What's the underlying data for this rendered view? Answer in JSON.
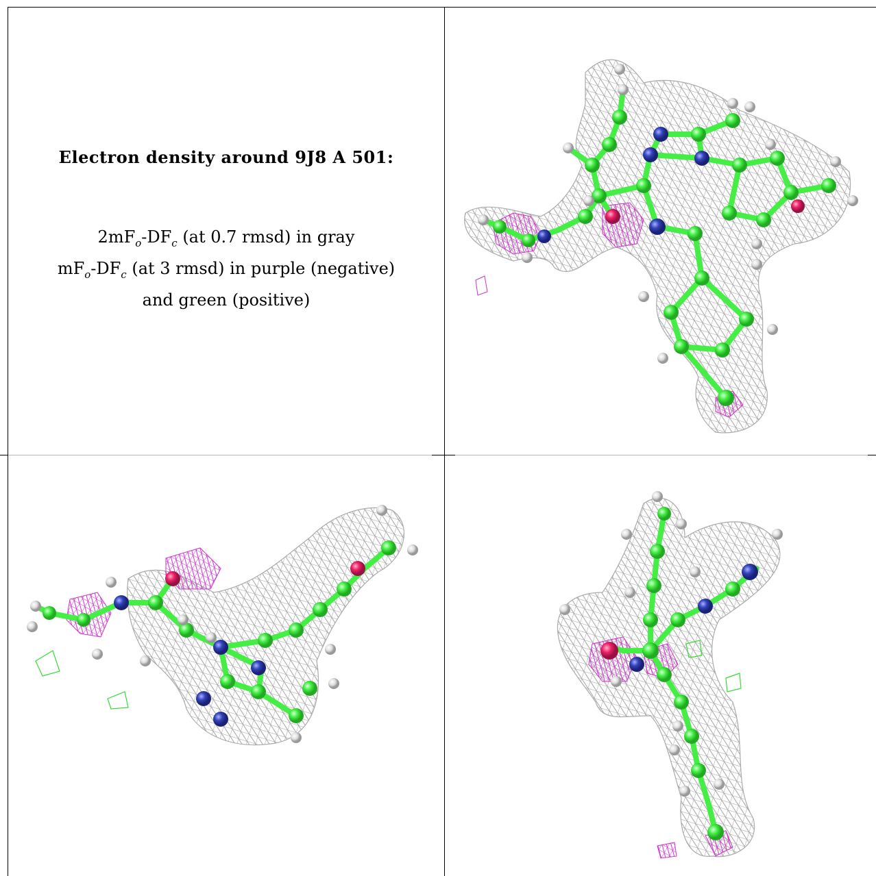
{
  "caption": {
    "title": "Electron density around 9J8 A 501:",
    "legend_lines": [
      {
        "pre": "2mF",
        "sub1": "o",
        "mid": "-DF",
        "sub2": "c",
        "post": " (at 0.7 rmsd) in gray"
      },
      {
        "pre": "mF",
        "sub1": "o",
        "mid": "-DF",
        "sub2": "c",
        "post": " (at 3 rmsd) in purple (negative)"
      },
      {
        "pre": "",
        "sub1": "",
        "mid": "",
        "sub2": "",
        "post": "and green (positive)"
      }
    ]
  },
  "colors": {
    "carbon": "#44ee44",
    "nitrogen": "#3344bb",
    "oxygen": "#ee2266",
    "hydrogen": "#dddddd",
    "mesh_2fofc": "#999999",
    "mesh_negative": "#cc33cc",
    "mesh_positive": "#33dd33"
  },
  "panels": [
    "view-top-right",
    "view-bottom-left",
    "view-bottom-right"
  ]
}
